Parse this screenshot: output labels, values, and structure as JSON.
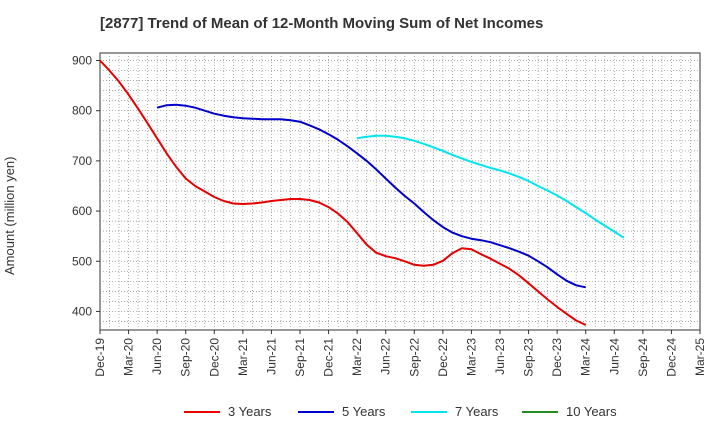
{
  "chart_data": {
    "type": "line",
    "title": "[2877]  Trend of Mean of 12-Month Moving Sum of Net Incomes",
    "xlabel": "",
    "ylabel": "Amount (million yen)",
    "ylim": [
      363,
      915
    ],
    "yticks": [
      400,
      500,
      600,
      700,
      800,
      900
    ],
    "xticks": [
      "Dec-19",
      "Mar-20",
      "Jun-20",
      "Sep-20",
      "Dec-20",
      "Mar-21",
      "Jun-21",
      "Sep-21",
      "Dec-21",
      "Mar-22",
      "Jun-22",
      "Sep-22",
      "Dec-22",
      "Mar-23",
      "Jun-23",
      "Sep-23",
      "Dec-23",
      "Mar-24",
      "Jun-24",
      "Sep-24",
      "Dec-24",
      "Mar-25"
    ],
    "grid": true,
    "legend_position": "bottom",
    "series": [
      {
        "name": "3 Years",
        "color": "#e60000",
        "start_index": 0,
        "values": [
          900,
          880,
          858,
          832,
          804,
          775,
          745,
          715,
          688,
          665,
          650,
          639,
          628,
          620,
          615,
          614,
          615,
          617,
          620,
          622,
          624,
          624,
          622,
          617,
          608,
          595,
          578,
          556,
          533,
          517,
          510,
          506,
          500,
          493,
          491,
          493,
          501,
          516,
          526,
          524,
          514,
          505,
          495,
          485,
          472,
          456,
          440,
          424,
          409,
          395,
          382,
          373
        ]
      },
      {
        "name": "5 Years",
        "color": "#0000cc",
        "start_index": 12,
        "start_month_offset": 6,
        "values": [
          806,
          811,
          812,
          810,
          806,
          800,
          794,
          790,
          787,
          785,
          784,
          783,
          783,
          783,
          781,
          778,
          771,
          763,
          753,
          742,
          729,
          715,
          700,
          683,
          665,
          647,
          630,
          615,
          598,
          582,
          568,
          557,
          550,
          545,
          542,
          538,
          532,
          526,
          519,
          511,
          500,
          488,
          474,
          461,
          452,
          448
        ]
      },
      {
        "name": "7 Years",
        "color": "#00e5ee",
        "start_month_offset": 27,
        "values": [
          745,
          748,
          750,
          750,
          748,
          745,
          740,
          734,
          727,
          720,
          712,
          705,
          698,
          692,
          686,
          681,
          675,
          668,
          660,
          650,
          641,
          631,
          620,
          608,
          596,
          583,
          571,
          559,
          547
        ]
      },
      {
        "name": "10 Years",
        "color": "#228b22",
        "values": []
      }
    ]
  }
}
